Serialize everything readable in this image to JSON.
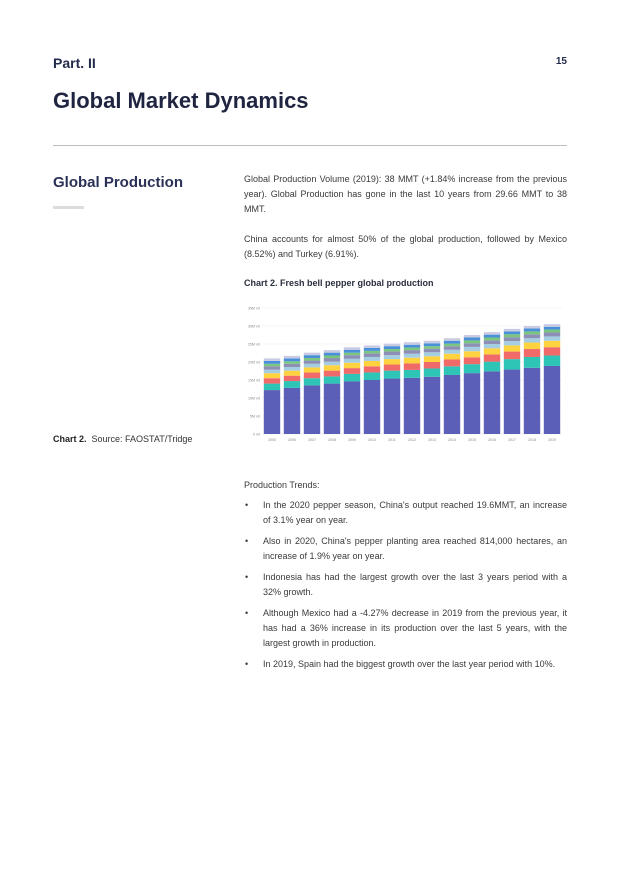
{
  "header": {
    "part": "Part. II",
    "page_number": "15"
  },
  "title": "Global Market Dynamics",
  "section": {
    "title": "Global Production",
    "paragraphs": [
      "Global Production Volume (2019): 38 MMT (+1.84% increase from the previous year). Global Production has gone in the last 10 years from 29.66 MMT to 38 MMT.",
      "China accounts for almost 50% of the global production, followed by Mexico (8.52%) and Turkey (6.91%)."
    ],
    "chart_title": "Chart 2. Fresh bell pepper global production",
    "caption_label": "Chart 2.",
    "caption_text": "Source: FAOSTAT/Tridge"
  },
  "trends": {
    "heading": "Production Trends:",
    "items": [
      "In the 2020 pepper season, China's output reached 19.6MMT, an increase of 3.1% year on year.",
      "Also in 2020, China's pepper planting area reached 814,000 hectares, an increase of 1.9% year on year.",
      "Indonesia has had the largest growth over the last 3 years period with a 32% growth.",
      "Although Mexico had a -4.27% decrease in 2019 from the previous year, it has had a 36% increase in its production over the last 5 years, with the largest growth in production.",
      "In 2019, Spain had the biggest growth over the last year period with 10%."
    ]
  },
  "chart_data": {
    "type": "bar",
    "stacked": true,
    "title": "Chart 2. Fresh bell pepper global production",
    "xlabel": "",
    "ylabel": "",
    "ylim": [
      0,
      35
    ],
    "y_ticks": [
      0,
      5,
      10,
      15,
      20,
      25,
      30,
      35
    ],
    "y_tick_labels": [
      "0 mt",
      "5M mt",
      "10M mt",
      "15M mt",
      "20M mt",
      "25M mt",
      "30M mt",
      "35M mt"
    ],
    "categories": [
      "2005",
      "2006",
      "2007",
      "2008",
      "2009",
      "2010",
      "2011",
      "2012",
      "2013",
      "2014",
      "2015",
      "2016",
      "2017",
      "2018",
      "2019"
    ],
    "grid": true,
    "legend": "none",
    "series": [
      {
        "color": "#5b5fb8",
        "values": [
          12.2,
          12.8,
          13.5,
          14.0,
          14.6,
          15.0,
          15.4,
          15.6,
          15.9,
          16.4,
          16.9,
          17.4,
          17.9,
          18.4,
          18.9
        ]
      },
      {
        "color": "#2ec4b6",
        "values": [
          1.8,
          1.9,
          2.0,
          2.0,
          2.1,
          2.1,
          2.2,
          2.2,
          2.3,
          2.4,
          2.5,
          2.7,
          2.9,
          3.0,
          2.9
        ]
      },
      {
        "color": "#f06a6a",
        "values": [
          1.5,
          1.5,
          1.6,
          1.6,
          1.6,
          1.7,
          1.7,
          1.8,
          1.8,
          1.9,
          1.9,
          2.0,
          2.1,
          2.2,
          2.3
        ]
      },
      {
        "color": "#ffd23f",
        "values": [
          1.4,
          1.4,
          1.4,
          1.5,
          1.5,
          1.5,
          1.5,
          1.6,
          1.6,
          1.6,
          1.7,
          1.7,
          1.7,
          1.8,
          1.8
        ]
      },
      {
        "color": "#a6cee3",
        "values": [
          1.0,
          1.0,
          1.0,
          1.0,
          1.1,
          1.1,
          1.1,
          1.1,
          1.1,
          1.1,
          1.2,
          1.2,
          1.2,
          1.2,
          1.2
        ]
      },
      {
        "color": "#8e8fb5",
        "values": [
          0.9,
          0.9,
          0.9,
          1.0,
          1.0,
          1.0,
          1.0,
          1.0,
          1.0,
          1.0,
          1.0,
          1.0,
          1.1,
          1.1,
          1.1
        ]
      },
      {
        "color": "#7bc67e",
        "values": [
          0.7,
          0.7,
          0.7,
          0.7,
          0.7,
          0.7,
          0.7,
          0.7,
          0.7,
          0.7,
          0.8,
          0.8,
          0.8,
          0.8,
          0.8
        ]
      },
      {
        "color": "#4a90d9",
        "values": [
          0.8,
          0.8,
          0.8,
          0.8,
          0.8,
          0.8,
          0.8,
          0.8,
          0.8,
          0.8,
          0.8,
          0.8,
          0.8,
          0.8,
          0.8
        ]
      },
      {
        "color": "#c9cbe3",
        "values": [
          0.7,
          0.7,
          0.7,
          0.7,
          0.7,
          0.7,
          0.7,
          0.7,
          0.7,
          0.7,
          0.7,
          0.7,
          0.7,
          0.7,
          0.7
        ]
      }
    ]
  }
}
